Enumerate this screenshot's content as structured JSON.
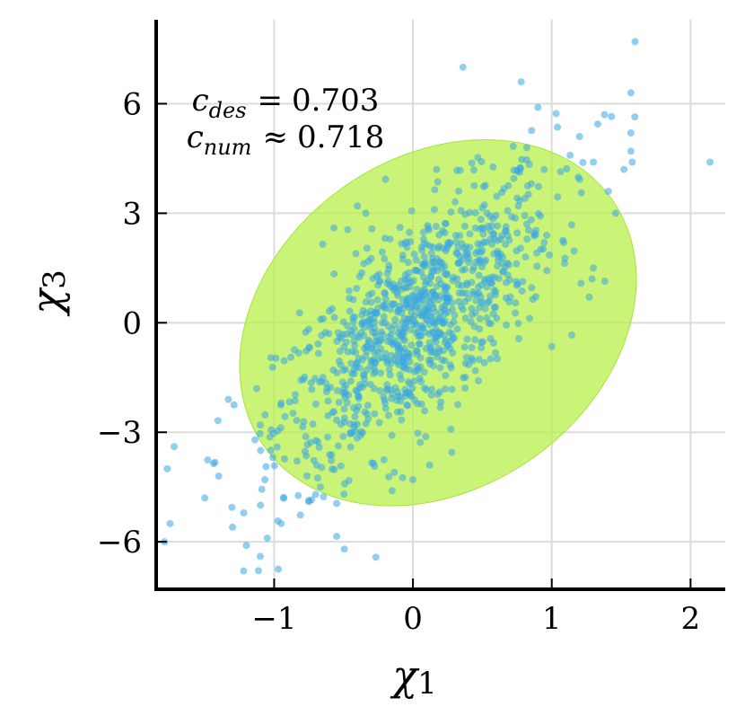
{
  "chart_data": {
    "type": "scatter",
    "title": "",
    "xlabel": "χ",
    "xlabel_subscript": "1",
    "ylabel": "χ",
    "ylabel_subscript": "3",
    "xlim": [
      -1.85,
      2.25
    ],
    "ylim": [
      -7.3,
      8.3
    ],
    "xticks": [
      -1,
      0,
      1,
      2
    ],
    "xtick_labels": [
      "−1",
      "0",
      "1",
      "2"
    ],
    "yticks": [
      -6,
      -3,
      0,
      3,
      6
    ],
    "ytick_labels": [
      "−6",
      "−3",
      "0",
      "3",
      "6"
    ],
    "grid": true,
    "point_color": "#3aa6e6",
    "ellipse_color": "#b8f04a",
    "ellipse": {
      "center": [
        0.18,
        0.0
      ],
      "semi_major_x": 1.25,
      "semi_major_y": 3.4,
      "semi_minor": 0.7
    },
    "annotations": [
      {
        "symbol": "c",
        "subscript": "des",
        "relation": "=",
        "value": "0.703"
      },
      {
        "symbol": "c",
        "subscript": "num",
        "relation": "≈",
        "value": "0.718"
      }
    ],
    "n_points": 1000,
    "correlation": 0.718,
    "x_std": 0.5,
    "y_std": 2.0,
    "outliers": [
      {
        "x": 1.6,
        "y": 7.7
      },
      {
        "x": 0.36,
        "y": 7.0
      },
      {
        "x": 0.78,
        "y": 6.6
      },
      {
        "x": 1.57,
        "y": 6.3
      },
      {
        "x": 0.9,
        "y": 5.9
      },
      {
        "x": 1.38,
        "y": 5.7
      },
      {
        "x": 1.43,
        "y": 5.65
      },
      {
        "x": 1.57,
        "y": 5.2
      },
      {
        "x": 1.57,
        "y": 4.7
      },
      {
        "x": 1.58,
        "y": 4.4
      },
      {
        "x": 1.52,
        "y": 4.2
      },
      {
        "x": 2.14,
        "y": 4.4
      },
      {
        "x": 1.46,
        "y": 3.0
      },
      {
        "x": 1.3,
        "y": 1.5
      },
      {
        "x": 1.29,
        "y": 1.2
      },
      {
        "x": 1.27,
        "y": 0.7
      },
      {
        "x": 1.0,
        "y": -0.65
      },
      {
        "x": -1.77,
        "y": -4.0
      },
      {
        "x": -1.75,
        "y": -5.5
      },
      {
        "x": -1.79,
        "y": -6.0
      },
      {
        "x": -1.5,
        "y": -4.8
      },
      {
        "x": -1.4,
        "y": -4.2
      },
      {
        "x": -1.3,
        "y": -5.6
      },
      {
        "x": -1.2,
        "y": -6.1
      },
      {
        "x": -1.22,
        "y": -6.8
      },
      {
        "x": -1.1,
        "y": -6.4
      },
      {
        "x": -1.05,
        "y": -5.9
      },
      {
        "x": -0.97,
        "y": -6.75
      },
      {
        "x": -0.95,
        "y": -5.5
      },
      {
        "x": -0.75,
        "y": -4.9
      },
      {
        "x": -0.73,
        "y": -4.85
      },
      {
        "x": -0.55,
        "y": -5.85
      },
      {
        "x": -0.55,
        "y": -4.95
      },
      {
        "x": -0.15,
        "y": -4.6
      },
      {
        "x": 0.0,
        "y": -4.3
      },
      {
        "x": 0.12,
        "y": -3.9
      },
      {
        "x": 0.28,
        "y": -3.55
      },
      {
        "x": -0.57,
        "y": 2.6
      },
      {
        "x": -0.47,
        "y": 2.55
      },
      {
        "x": -0.4,
        "y": 3.2
      },
      {
        "x": -0.34,
        "y": 3.0
      },
      {
        "x": -0.65,
        "y": 2.15
      },
      {
        "x": -1.33,
        "y": -2.1
      },
      {
        "x": -1.1,
        "y": -2.8
      },
      {
        "x": 0.17,
        "y": 4.2
      },
      {
        "x": 1.3,
        "y": 4.4
      },
      {
        "x": 1.2,
        "y": 5.1
      }
    ]
  }
}
